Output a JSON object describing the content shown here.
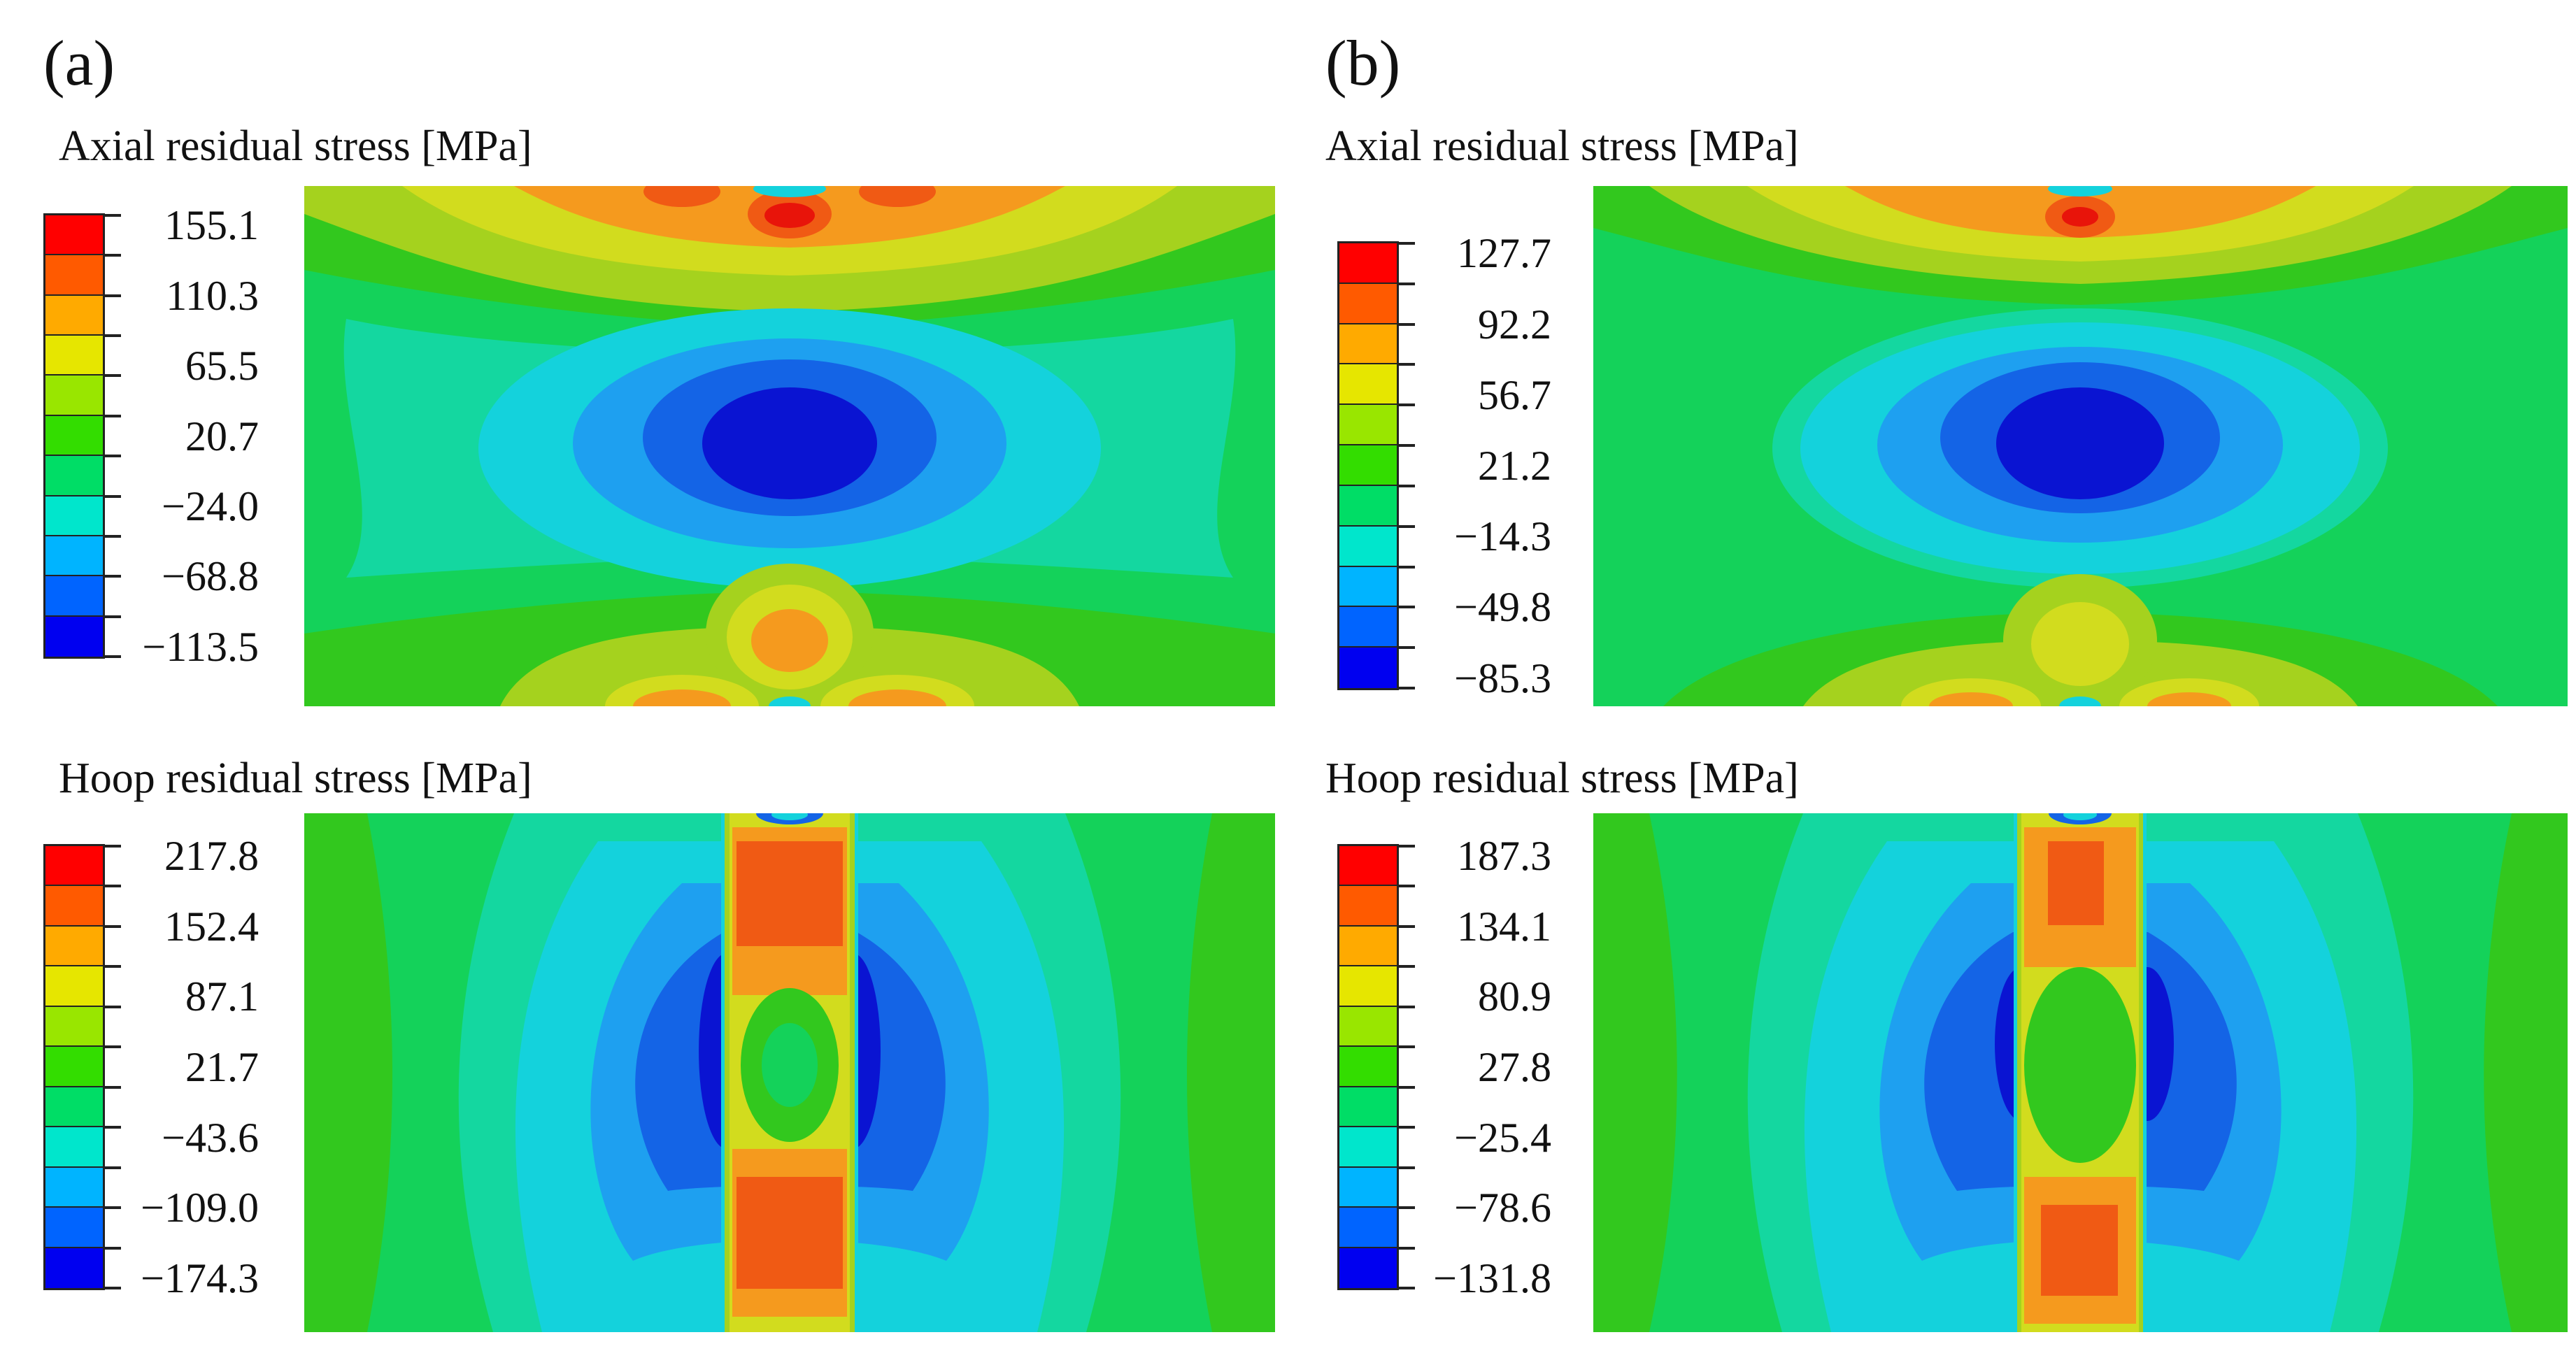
{
  "panels": [
    {
      "label": "(a)",
      "axial": {
        "title": "Axial residual stress [MPa]",
        "ticks": [
          "155.1",
          "110.3",
          "65.5",
          "20.7",
          "−24.0",
          "−68.8",
          "−113.5"
        ]
      },
      "hoop": {
        "title": "Hoop residual stress [MPa]",
        "ticks": [
          "217.8",
          "152.4",
          "87.1",
          "21.7",
          "−43.6",
          "−109.0",
          "−174.3"
        ]
      }
    },
    {
      "label": "(b)",
      "axial": {
        "title": "Axial residual stress [MPa]",
        "ticks": [
          "127.7",
          "92.2",
          "56.7",
          "21.2",
          "−14.3",
          "−49.8",
          "−85.3"
        ]
      },
      "hoop": {
        "title": "Hoop residual stress [MPa]",
        "ticks": [
          "187.3",
          "134.1",
          "80.9",
          "27.8",
          "−25.4",
          "−78.6",
          "−131.8"
        ]
      }
    }
  ],
  "colormap": [
    "#ff0000",
    "#ff5a00",
    "#ffaa00",
    "#e6e600",
    "#99e600",
    "#33dd00",
    "#00dd66",
    "#00e6cc",
    "#00b4ff",
    "#0064ff",
    "#0000f0"
  ],
  "palette": {
    "red": "#e8140a",
    "orange_red": "#f05a14",
    "orange": "#f59a1e",
    "yellow": "#d2dc1e",
    "yellow_green": "#a5d21e",
    "green": "#32c81e",
    "green_mint": "#14d25a",
    "cyan_green": "#14d7a0",
    "cyan": "#14d2dc",
    "sky": "#1ea0f0",
    "blue": "#1464e6",
    "deep_blue": "#0a14d2"
  }
}
